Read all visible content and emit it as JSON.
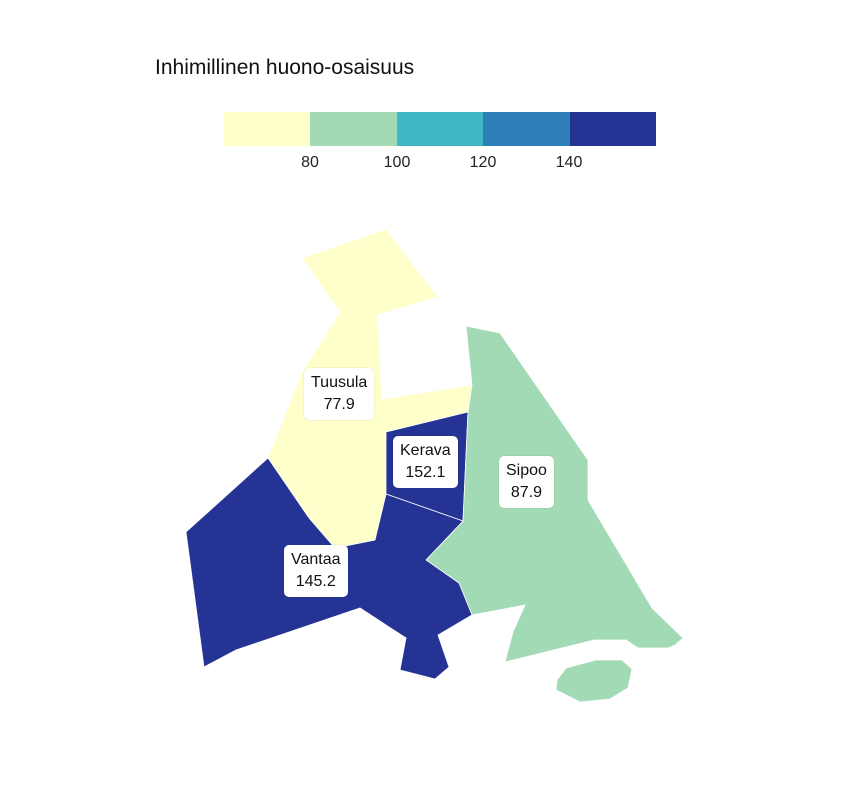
{
  "legend": {
    "title": "Inhimillinen huono-osaisuus",
    "colors": [
      "#ffffcc",
      "#a1dab4",
      "#41b6c4",
      "#2c7fb8",
      "#253494"
    ],
    "ticks": [
      "80",
      "100",
      "120",
      "140"
    ]
  },
  "regions": [
    {
      "name": "Tuusula",
      "value": "77.9",
      "color": "#ffffcc"
    },
    {
      "name": "Kerava",
      "value": "152.1",
      "color": "#253494"
    },
    {
      "name": "Sipoo",
      "value": "87.9",
      "color": "#a1dab4"
    },
    {
      "name": "Vantaa",
      "value": "145.2",
      "color": "#253494"
    }
  ]
}
